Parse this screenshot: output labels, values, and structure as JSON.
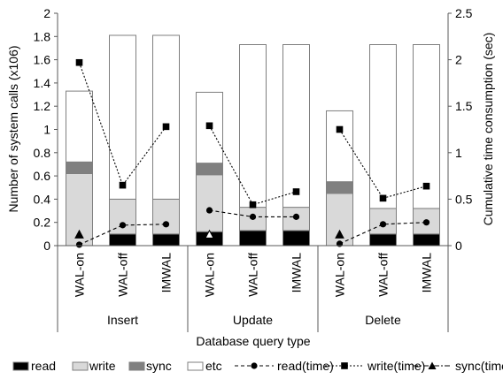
{
  "chart_data": {
    "type": "bar",
    "stacked": true,
    "xlabel": "Database query type",
    "ylabel_left": "Number of system calls (x106)",
    "ylabel_right": "Cumulative time consumption (sec)",
    "ylim_left": [
      0,
      2
    ],
    "ylim_right": [
      0,
      2.5
    ],
    "yticks_left": [
      "0",
      "0.2",
      "0.4",
      "0.6",
      "0.8",
      "1",
      "1.2",
      "1.4",
      "1.6",
      "1.8",
      "2"
    ],
    "yticks_right": [
      "0",
      "0.5",
      "1",
      "1.5",
      "2",
      "2.5"
    ],
    "groups": [
      "Insert",
      "Update",
      "Delete"
    ],
    "categories": [
      "WAL-on",
      "WAL-off",
      "IMWAL",
      "WAL-on",
      "WAL-off",
      "IMWAL",
      "WAL-on",
      "WAL-off",
      "IMWAL"
    ],
    "bar_series": [
      {
        "name": "read",
        "color": "#000000",
        "values": [
          0,
          0.1,
          0.1,
          0.12,
          0.13,
          0.13,
          0,
          0.1,
          0.1
        ]
      },
      {
        "name": "write",
        "color": "#d9d9d9",
        "values": [
          0.62,
          0.3,
          0.3,
          0.49,
          0.2,
          0.2,
          0.45,
          0.22,
          0.22
        ]
      },
      {
        "name": "sync",
        "color": "#808080",
        "values": [
          0.1,
          0,
          0,
          0.1,
          0,
          0,
          0.1,
          0,
          0
        ]
      },
      {
        "name": "etc",
        "color": "#ffffff",
        "values": [
          0.61,
          1.41,
          1.41,
          0.61,
          1.4,
          1.4,
          0.61,
          1.41,
          1.41
        ]
      }
    ],
    "line_series": [
      {
        "name": "read(time)",
        "marker": "circle",
        "dash": "4,3",
        "values": [
          0.01,
          0.22,
          0.23,
          0.38,
          0.31,
          0.31,
          0.02,
          0.23,
          0.25
        ]
      },
      {
        "name": "write(time)",
        "marker": "square",
        "dash": "2,2",
        "values": [
          1.97,
          0.65,
          1.28,
          1.29,
          0.44,
          0.58,
          1.25,
          0.51,
          0.64
        ]
      },
      {
        "name": "sync(time)",
        "marker": "triangle",
        "dash": "6,2,2,2",
        "values": [
          0.12,
          null,
          null,
          0.12,
          null,
          null,
          0.12,
          null,
          null
        ]
      }
    ],
    "legend": [
      "read",
      "write",
      "sync",
      "etc",
      "read(time)",
      "write(time)",
      "sync(time)"
    ],
    "legend_position": "bottom"
  }
}
